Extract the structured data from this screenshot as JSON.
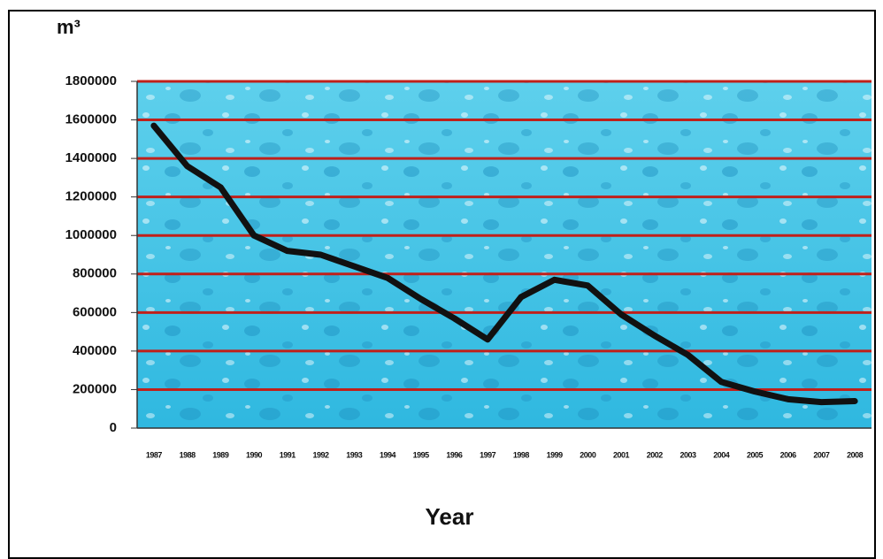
{
  "chart_data": {
    "type": "line",
    "y_label": "m³",
    "x_label": "Year",
    "categories": [
      "1987",
      "1988",
      "1989",
      "1990",
      "1991",
      "1992",
      "1993",
      "1994",
      "1995",
      "1996",
      "1997",
      "1998",
      "1999",
      "2000",
      "2001",
      "2002",
      "2003",
      "2004",
      "2005",
      "2006",
      "2007",
      "2008"
    ],
    "values": [
      1570000,
      1360000,
      1250000,
      1000000,
      920000,
      900000,
      840000,
      780000,
      670000,
      570000,
      460000,
      680000,
      770000,
      740000,
      590000,
      480000,
      380000,
      240000,
      190000,
      150000,
      135000,
      140000
    ],
    "color": "#111111",
    "ylim": [
      0,
      1800000
    ],
    "yticks": [
      0,
      200000,
      400000,
      600000,
      800000,
      1000000,
      1200000,
      1400000,
      1600000,
      1800000
    ],
    "grid": true,
    "grid_color": "#c0201a"
  }
}
